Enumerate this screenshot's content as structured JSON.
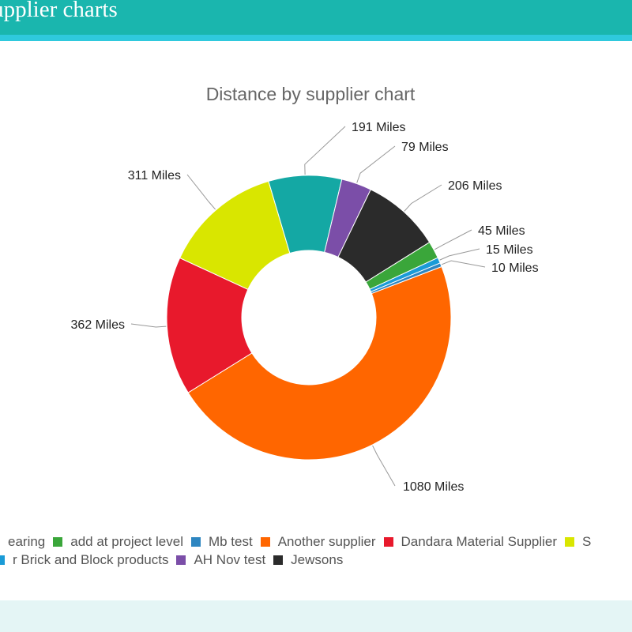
{
  "header": {
    "title": "Supplier charts"
  },
  "chart_data": {
    "type": "pie",
    "variant": "donut",
    "title": "Distance by supplier chart",
    "unit": "Miles",
    "slices": [
      {
        "label": "Another supplier",
        "value": 1080,
        "display": "1080 Miles",
        "color": "#ff6600"
      },
      {
        "label": "Dandara Material Supplier",
        "value": 362,
        "display": "362 Miles",
        "color": "#e8192c"
      },
      {
        "label": "S",
        "value": 311,
        "display": "311 Miles",
        "color": "#d9e600"
      },
      {
        "label": "",
        "value": 191,
        "display": "191 Miles",
        "color": "#14a8a4"
      },
      {
        "label": "AH Nov test",
        "value": 79,
        "display": "79 Miles",
        "color": "#7b4ea8"
      },
      {
        "label": "Jewsons",
        "value": 206,
        "display": "206 Miles",
        "color": "#2b2b2b"
      },
      {
        "label": "add at project level",
        "value": 45,
        "display": "45 Miles",
        "color": "#3aa63a"
      },
      {
        "label": "",
        "value": 15,
        "display": "15 Miles",
        "color": "#1a9bd7"
      },
      {
        "label": "Mb test",
        "value": 10,
        "display": "10 Miles",
        "color": "#2e86c1"
      }
    ],
    "legend": {
      "position": "bottom",
      "rows": [
        [
          {
            "label": "earing",
            "color": "#14a8a4"
          },
          {
            "label": "add at project level",
            "color": "#3aa63a"
          },
          {
            "label": "Mb test",
            "color": "#2e86c1"
          },
          {
            "label": "Another supplier",
            "color": "#ff6600"
          },
          {
            "label": "Dandara Material Supplier",
            "color": "#e8192c"
          },
          {
            "label": "S",
            "color": "#d9e600"
          }
        ],
        [
          {
            "label": "r Brick and Block products",
            "color": "#1a9bd7"
          },
          {
            "label": "AH Nov test",
            "color": "#7b4ea8"
          },
          {
            "label": "Jewsons",
            "color": "#2b2b2b"
          }
        ]
      ]
    }
  }
}
